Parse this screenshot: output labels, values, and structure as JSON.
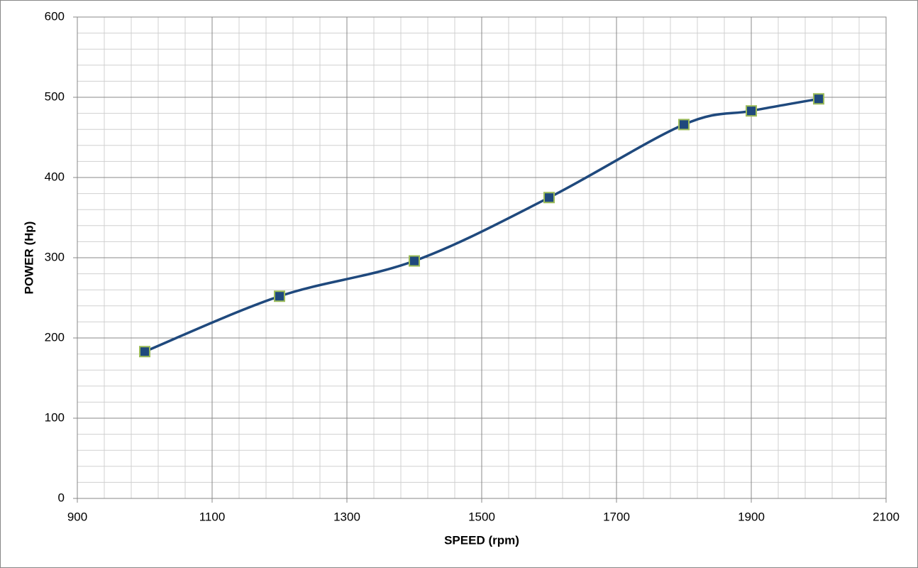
{
  "chart_data": {
    "type": "line",
    "x_label": "SPEED (rpm)",
    "y_label": "POWER (Hp)",
    "x": [
      1000,
      1200,
      1400,
      1600,
      1800,
      1900,
      2000
    ],
    "series": [
      {
        "color": "#1f497d",
        "marker_edge": "#9bbb59",
        "values": [
          183,
          252,
          296,
          375,
          466,
          483,
          498
        ]
      }
    ],
    "xlim": [
      900,
      2100
    ],
    "xticks": [
      900,
      1100,
      1300,
      1500,
      1700,
      1900,
      2100
    ],
    "ylim": [
      0,
      600
    ],
    "yticks": [
      0,
      100,
      200,
      300,
      400,
      500,
      600
    ],
    "grid": true,
    "minor_divisions": 5,
    "smooth": true
  }
}
